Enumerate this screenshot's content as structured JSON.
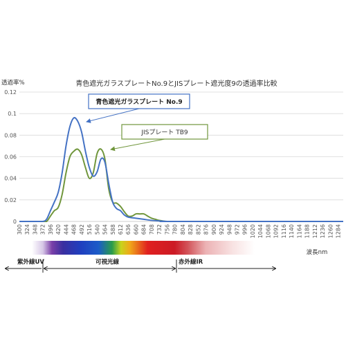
{
  "chart_data": {
    "type": "line",
    "title": "青色遮光ガラスプレートNo.9とJISプレート遮光度9の透過率比較",
    "ylabel": "透過率%",
    "xlabel": "波長nm",
    "ylim": [
      0,
      0.12
    ],
    "yticks": [
      "0",
      "0.02",
      "0.04",
      "0.06",
      "0.08",
      "0.1",
      "0.12"
    ],
    "yticks_values": [
      0,
      0.02,
      0.04,
      0.06,
      0.08,
      0.1,
      0.12
    ],
    "x_categories": [
      "300",
      "324",
      "348",
      "372",
      "396",
      "420",
      "444",
      "468",
      "492",
      "516",
      "540",
      "564",
      "588",
      "612",
      "636",
      "660",
      "684",
      "708",
      "732",
      "756",
      "780",
      "804",
      "828",
      "852",
      "876",
      "900",
      "924",
      "948",
      "972",
      "996",
      "1020",
      "1044",
      "1068",
      "1092",
      "1116",
      "1140",
      "1164",
      "1188",
      "1212",
      "1236",
      "1260",
      "1284"
    ],
    "grid": true,
    "series": [
      {
        "name": "青色遮光ガラスプレート No.9",
        "color": "#4472c4",
        "points": [
          [
            300,
            0
          ],
          [
            348,
            0
          ],
          [
            372,
            0
          ],
          [
            384,
            0.002
          ],
          [
            396,
            0.01
          ],
          [
            408,
            0.018
          ],
          [
            420,
            0.027
          ],
          [
            432,
            0.045
          ],
          [
            444,
            0.07
          ],
          [
            456,
            0.088
          ],
          [
            468,
            0.096
          ],
          [
            480,
            0.093
          ],
          [
            492,
            0.083
          ],
          [
            504,
            0.065
          ],
          [
            516,
            0.05
          ],
          [
            528,
            0.042
          ],
          [
            540,
            0.046
          ],
          [
            552,
            0.058
          ],
          [
            564,
            0.055
          ],
          [
            576,
            0.035
          ],
          [
            588,
            0.018
          ],
          [
            600,
            0.012
          ],
          [
            612,
            0.01
          ],
          [
            624,
            0.006
          ],
          [
            636,
            0.004
          ],
          [
            660,
            0.003
          ],
          [
            684,
            0.002
          ],
          [
            708,
            0.001
          ],
          [
            732,
            0.0005
          ],
          [
            756,
            0
          ],
          [
            780,
            0
          ],
          [
            1300,
            0
          ]
        ]
      },
      {
        "name": "JISプレート TB9",
        "color": "#70963c",
        "points": [
          [
            300,
            0
          ],
          [
            348,
            0
          ],
          [
            372,
            0
          ],
          [
            384,
            0
          ],
          [
            396,
            0.005
          ],
          [
            408,
            0.01
          ],
          [
            420,
            0.013
          ],
          [
            432,
            0.025
          ],
          [
            444,
            0.045
          ],
          [
            456,
            0.06
          ],
          [
            468,
            0.065
          ],
          [
            480,
            0.067
          ],
          [
            492,
            0.062
          ],
          [
            504,
            0.05
          ],
          [
            516,
            0.04
          ],
          [
            528,
            0.045
          ],
          [
            540,
            0.063
          ],
          [
            552,
            0.067
          ],
          [
            564,
            0.058
          ],
          [
            576,
            0.03
          ],
          [
            588,
            0.018
          ],
          [
            600,
            0.017
          ],
          [
            612,
            0.014
          ],
          [
            624,
            0.009
          ],
          [
            636,
            0.005
          ],
          [
            648,
            0.005
          ],
          [
            660,
            0.007
          ],
          [
            672,
            0.007
          ],
          [
            684,
            0.007
          ],
          [
            696,
            0.005
          ],
          [
            708,
            0.003
          ],
          [
            720,
            0.002
          ],
          [
            732,
            0.001
          ],
          [
            756,
            0
          ],
          [
            780,
            0
          ],
          [
            1300,
            0
          ]
        ]
      }
    ],
    "annotations": [
      {
        "text": "青色遮光ガラスプレート No.9",
        "points_to_series": 0
      },
      {
        "text": "JISプレート TB9",
        "points_to_series": 1
      }
    ]
  },
  "spectrum_bands": [
    {
      "label": "紫外線UV"
    },
    {
      "label": "可視光線"
    },
    {
      "label": "赤外線IR"
    }
  ]
}
